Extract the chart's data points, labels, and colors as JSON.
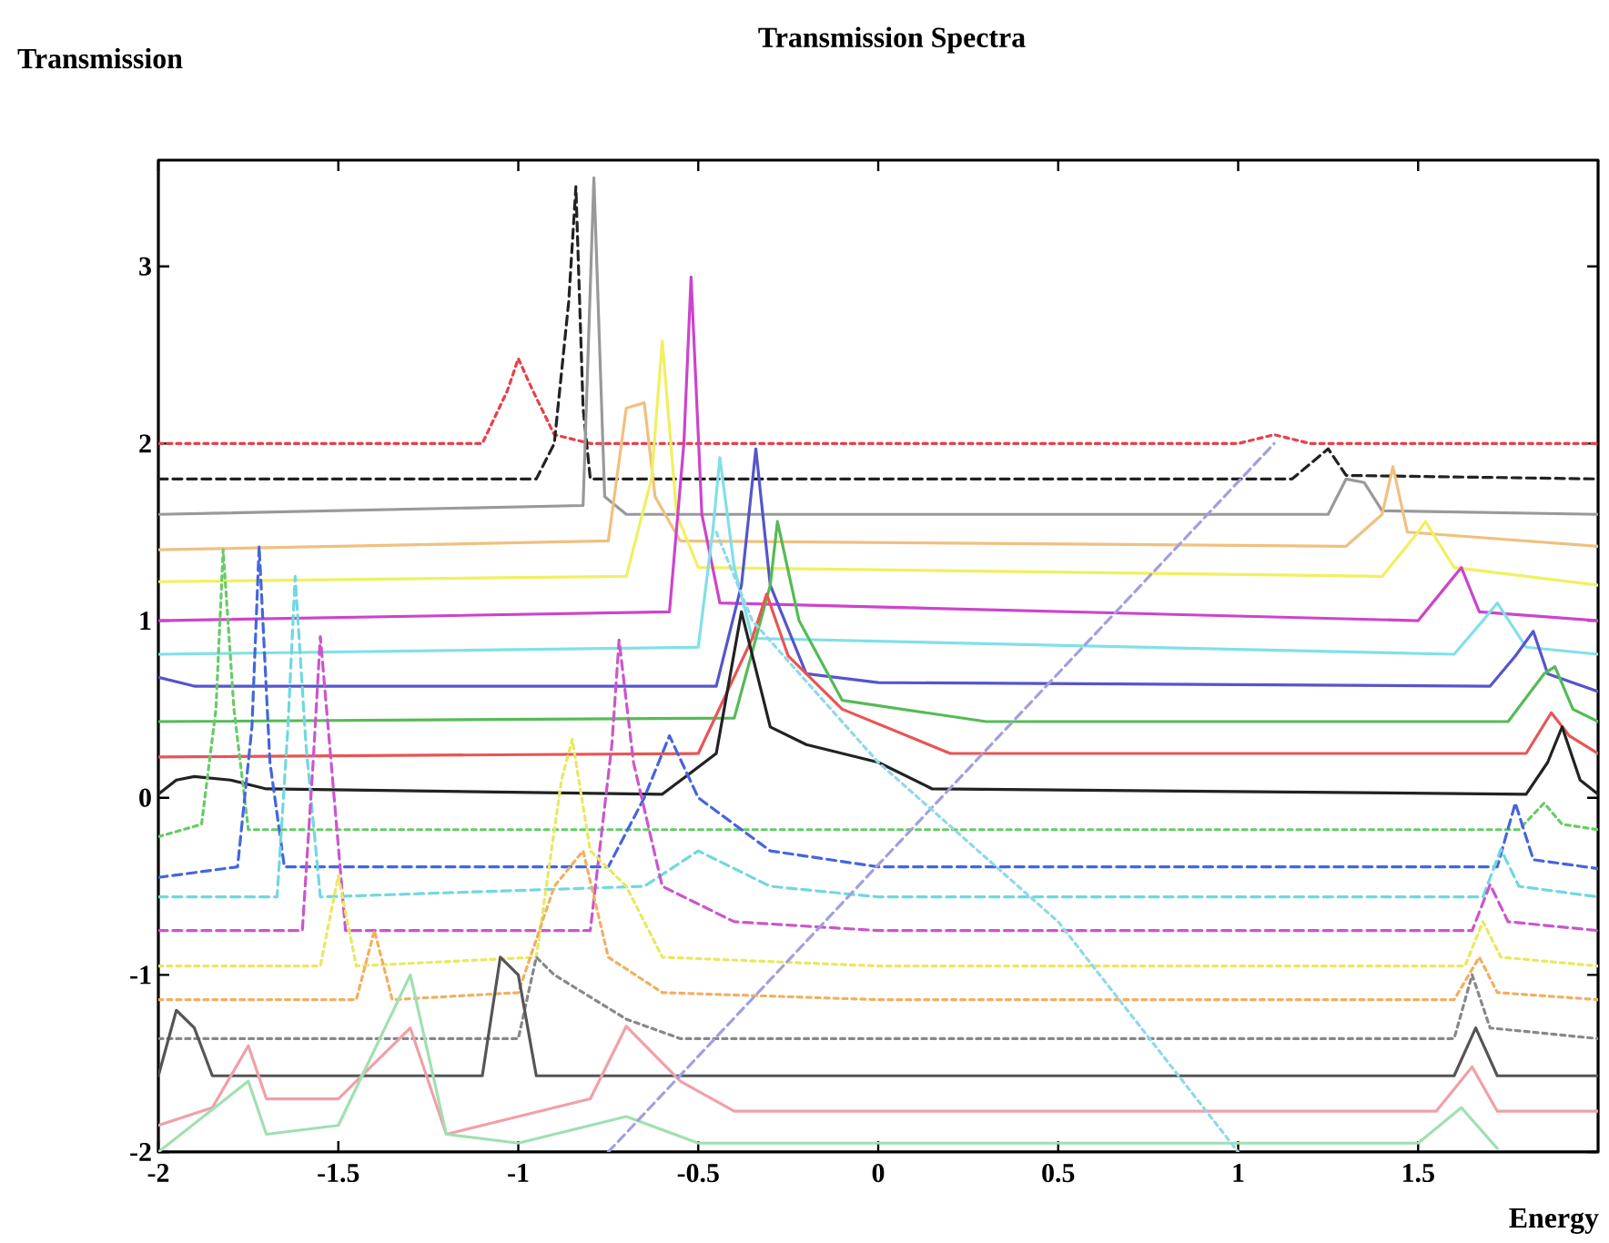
{
  "chart_data": {
    "type": "line",
    "title": "Transmission Spectra",
    "xlabel": "Energy",
    "ylabel": "Transmission",
    "xlim": [
      -2,
      2
    ],
    "ylim": [
      -2,
      3.6
    ],
    "xticks": [
      -2,
      -1.5,
      -1,
      -0.5,
      0,
      0.5,
      1,
      1.5
    ],
    "yticks": [
      -2,
      -1,
      0,
      1,
      2,
      3
    ],
    "grid": false,
    "marker": "none",
    "series": [
      {
        "color": "#e8404a",
        "line_style": "dotted",
        "x": [
          -2,
          -1.1,
          -1.03,
          -1.0,
          -0.96,
          -0.9,
          -0.8,
          1.0,
          1.1,
          1.2,
          2
        ],
        "values": [
          2.0,
          2.0,
          2.3,
          2.48,
          2.3,
          2.05,
          2.0,
          2.0,
          2.05,
          2.0,
          2.0
        ]
      },
      {
        "color": "#222222",
        "line_style": "dashed",
        "x": [
          -2,
          -0.95,
          -0.9,
          -0.86,
          -0.84,
          -0.82,
          -0.8,
          1.15,
          1.25,
          1.3,
          2
        ],
        "values": [
          1.8,
          1.8,
          2.0,
          2.8,
          3.45,
          2.2,
          1.8,
          1.8,
          1.97,
          1.82,
          1.8
        ]
      },
      {
        "color": "#999999",
        "line_style": "solid",
        "x": [
          -2,
          -0.82,
          -0.79,
          -0.76,
          -0.7,
          1.25,
          1.3,
          1.35,
          1.4,
          2
        ],
        "values": [
          1.6,
          1.65,
          3.5,
          1.7,
          1.6,
          1.6,
          1.8,
          1.78,
          1.62,
          1.6
        ]
      },
      {
        "color": "#f0c080",
        "line_style": "solid",
        "x": [
          -2,
          -0.75,
          -0.7,
          -0.65,
          -0.62,
          -0.55,
          1.3,
          1.4,
          1.43,
          1.47,
          2
        ],
        "values": [
          1.4,
          1.45,
          2.2,
          2.23,
          1.7,
          1.45,
          1.42,
          1.6,
          1.87,
          1.5,
          1.42
        ]
      },
      {
        "color": "#f0f060",
        "line_style": "solid",
        "x": [
          -2,
          -0.7,
          -0.63,
          -0.6,
          -0.56,
          -0.5,
          1.4,
          1.5,
          1.52,
          1.6,
          2
        ],
        "values": [
          1.22,
          1.25,
          1.8,
          2.58,
          1.6,
          1.3,
          1.25,
          1.5,
          1.56,
          1.3,
          1.2
        ]
      },
      {
        "color": "#cc44cc",
        "line_style": "solid",
        "x": [
          -2,
          -0.58,
          -0.54,
          -0.52,
          -0.49,
          -0.44,
          1.5,
          1.58,
          1.62,
          1.67,
          2
        ],
        "values": [
          1.0,
          1.05,
          2.0,
          2.94,
          1.6,
          1.1,
          1.0,
          1.2,
          1.3,
          1.05,
          1.0
        ]
      },
      {
        "color": "#80e0e8",
        "line_style": "solid",
        "x": [
          -2,
          -0.5,
          -0.46,
          -0.44,
          -0.4,
          -0.35,
          1.6,
          1.68,
          1.72,
          1.8,
          2
        ],
        "values": [
          0.81,
          0.85,
          1.5,
          1.92,
          1.3,
          0.9,
          0.81,
          1.0,
          1.1,
          0.85,
          0.81
        ]
      },
      {
        "color": "#5555cc",
        "line_style": "solid",
        "x": [
          -2,
          -1.9,
          -0.45,
          -0.38,
          -0.34,
          -0.3,
          -0.2,
          0,
          1.7,
          1.77,
          1.82,
          1.86,
          2
        ],
        "values": [
          0.68,
          0.63,
          0.63,
          1.2,
          1.97,
          1.2,
          0.7,
          0.65,
          0.63,
          0.8,
          0.94,
          0.7,
          0.6
        ]
      },
      {
        "color": "#55bb55",
        "line_style": "solid",
        "x": [
          -2,
          -0.4,
          -0.3,
          -0.28,
          -0.22,
          -0.1,
          0.3,
          1.75,
          1.85,
          1.88,
          1.93,
          2
        ],
        "values": [
          0.43,
          0.45,
          1.2,
          1.56,
          1.0,
          0.55,
          0.43,
          0.43,
          0.7,
          0.74,
          0.5,
          0.43
        ]
      },
      {
        "color": "#e85555",
        "line_style": "solid",
        "x": [
          -2,
          -0.5,
          -0.35,
          -0.31,
          -0.25,
          -0.1,
          0.2,
          1.8,
          1.87,
          1.92,
          2
        ],
        "values": [
          0.23,
          0.25,
          0.9,
          1.15,
          0.8,
          0.5,
          0.25,
          0.25,
          0.48,
          0.35,
          0.25
        ]
      },
      {
        "color": "#222222",
        "line_style": "solid",
        "x": [
          -2,
          -1.95,
          -1.9,
          -1.8,
          -1.7,
          -0.6,
          -0.45,
          -0.38,
          -0.3,
          -0.2,
          0,
          0.15,
          1.8,
          1.86,
          1.9,
          1.95,
          2
        ],
        "values": [
          0.02,
          0.1,
          0.12,
          0.1,
          0.05,
          0.02,
          0.25,
          1.05,
          0.4,
          0.3,
          0.2,
          0.05,
          0.02,
          0.2,
          0.4,
          0.1,
          0.02
        ]
      },
      {
        "color": "#66cc66",
        "line_style": "dotted",
        "x": [
          -2,
          -1.88,
          -1.84,
          -1.82,
          -1.79,
          -1.75,
          -0.6,
          0,
          1.78,
          1.85,
          1.9,
          2
        ],
        "values": [
          -0.22,
          -0.15,
          0.5,
          1.4,
          0.5,
          -0.18,
          -0.18,
          -0.18,
          -0.18,
          -0.03,
          -0.15,
          -0.18
        ]
      },
      {
        "color": "#4466dd",
        "line_style": "dashed",
        "x": [
          -2,
          -1.78,
          -1.74,
          -1.72,
          -1.69,
          -1.65,
          -0.75,
          -0.65,
          -0.58,
          -0.5,
          -0.3,
          0,
          1.72,
          1.77,
          1.82,
          2
        ],
        "values": [
          -0.45,
          -0.39,
          0.4,
          1.42,
          0.2,
          -0.39,
          -0.39,
          0.0,
          0.35,
          0.0,
          -0.3,
          -0.39,
          -0.39,
          -0.03,
          -0.35,
          -0.4
        ]
      },
      {
        "color": "#70d8e0",
        "line_style": "dashed",
        "x": [
          -2,
          -1.67,
          -1.64,
          -1.62,
          -1.59,
          -1.55,
          -0.65,
          -0.5,
          -0.3,
          0,
          1.68,
          1.73,
          1.78,
          2
        ],
        "values": [
          -0.56,
          -0.56,
          0.4,
          1.25,
          0.3,
          -0.56,
          -0.5,
          -0.3,
          -0.5,
          -0.56,
          -0.56,
          -0.29,
          -0.5,
          -0.56
        ]
      },
      {
        "color": "#cc55cc",
        "line_style": "dashed",
        "x": [
          -2,
          -1.6,
          -1.57,
          -1.55,
          -1.52,
          -1.48,
          -0.8,
          -0.74,
          -0.72,
          -0.68,
          -0.6,
          -0.4,
          0,
          1.65,
          1.7,
          1.75,
          2
        ],
        "values": [
          -0.75,
          -0.75,
          0.2,
          0.91,
          0.2,
          -0.75,
          -0.75,
          0.3,
          0.89,
          0.2,
          -0.5,
          -0.7,
          -0.75,
          -0.75,
          -0.49,
          -0.7,
          -0.75
        ]
      },
      {
        "color": "#e8e860",
        "line_style": "dotted",
        "x": [
          -2,
          -1.55,
          -1.5,
          -1.45,
          -0.95,
          -0.88,
          -0.85,
          -0.8,
          -0.7,
          -0.6,
          0,
          1.63,
          1.68,
          1.73,
          2
        ],
        "values": [
          -0.95,
          -0.95,
          -0.44,
          -0.95,
          -0.9,
          0.1,
          0.33,
          -0.3,
          -0.5,
          -0.9,
          -0.95,
          -0.95,
          -0.7,
          -0.9,
          -0.95
        ]
      },
      {
        "color": "#f0b060",
        "line_style": "dotted",
        "x": [
          -2,
          -1.45,
          -1.4,
          -1.35,
          -1.0,
          -0.9,
          -0.82,
          -0.75,
          -0.6,
          0,
          1.6,
          1.67,
          1.72,
          2
        ],
        "values": [
          -1.14,
          -1.14,
          -0.75,
          -1.14,
          -1.1,
          -0.5,
          -0.3,
          -0.9,
          -1.1,
          -1.14,
          -1.14,
          -0.9,
          -1.1,
          -1.14
        ]
      },
      {
        "color": "#888888",
        "line_style": "dotted",
        "x": [
          -2,
          -1.0,
          -0.95,
          -0.9,
          -0.7,
          -0.55,
          1.6,
          1.65,
          1.7,
          2
        ],
        "values": [
          -1.36,
          -1.36,
          -0.9,
          -1.0,
          -1.25,
          -1.36,
          -1.36,
          -1.0,
          -1.3,
          -1.36
        ]
      },
      {
        "color": "#555555",
        "line_style": "solid",
        "x": [
          -2,
          -1.95,
          -1.9,
          -1.85,
          -1.1,
          -1.05,
          -1.0,
          -0.95,
          1.6,
          1.66,
          1.72,
          2
        ],
        "values": [
          -1.57,
          -1.2,
          -1.3,
          -1.57,
          -1.57,
          -0.9,
          -1.0,
          -1.57,
          -1.57,
          -1.3,
          -1.57,
          -1.57
        ]
      },
      {
        "color": "#f0a0a8",
        "line_style": "solid",
        "x": [
          -2,
          -1.85,
          -1.75,
          -1.7,
          -1.5,
          -1.3,
          -1.2,
          -0.8,
          -0.7,
          -0.55,
          -0.4,
          1.55,
          1.65,
          1.72,
          2
        ],
        "values": [
          -1.85,
          -1.75,
          -1.4,
          -1.7,
          -1.7,
          -1.3,
          -1.9,
          -1.7,
          -1.29,
          -1.6,
          -1.77,
          -1.77,
          -1.52,
          -1.77,
          -1.77
        ]
      },
      {
        "color": "#a0e0b0",
        "line_style": "solid",
        "x": [
          -2,
          -1.75,
          -1.7,
          -1.5,
          -1.3,
          -1.2,
          -1.0,
          -0.7,
          -0.5,
          1.5,
          1.62,
          1.72
        ],
        "values": [
          -2.0,
          -1.6,
          -1.9,
          -1.85,
          -1.0,
          -1.9,
          -1.95,
          -1.8,
          -1.95,
          -1.95,
          -1.75,
          -1.98
        ]
      },
      {
        "color": "#a0a0e0",
        "line_style": "dashed",
        "x": [
          -0.75,
          1.1
        ],
        "values": [
          -2.0,
          2.0
        ]
      },
      {
        "color": "#90d8e8",
        "line_style": "dotted",
        "x": [
          -0.45,
          -0.35,
          0,
          0.5,
          1.0
        ],
        "values": [
          1.5,
          1.0,
          0.2,
          -0.7,
          -2.0
        ]
      }
    ]
  }
}
